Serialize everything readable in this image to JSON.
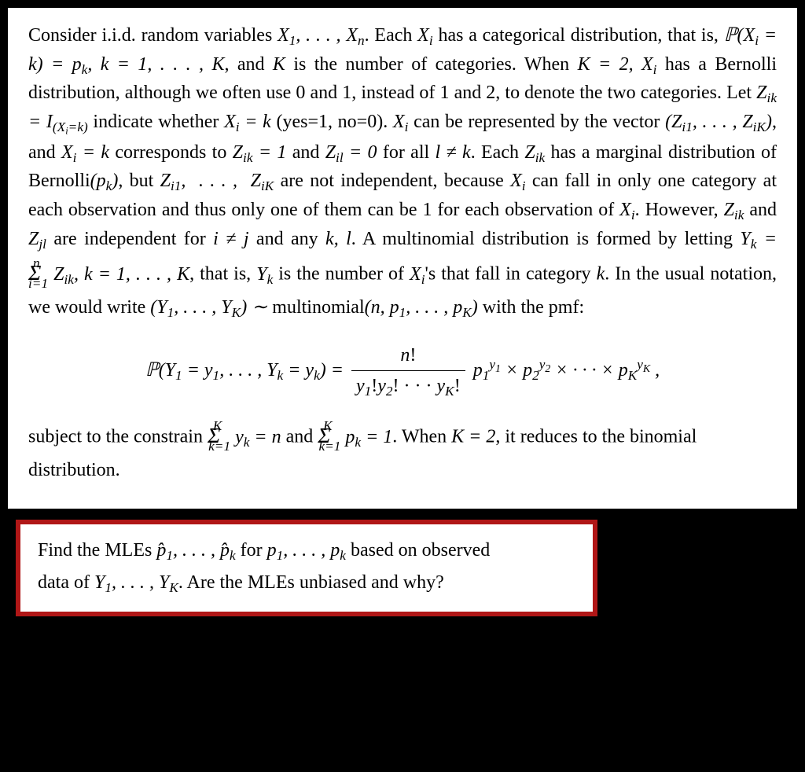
{
  "main": {
    "para1_a": "Consider i.i.d. random variables ",
    "para1_b": ". Each ",
    "para1_c": " has a categorical distribution, that is, ",
    "para1_d": ", and ",
    "para1_e": " is the number of categories. When ",
    "para1_f": " has a Bernolli distribution, although we often use 0 and 1, instead of 1 and 2, to denote the two categories. Let ",
    "para1_g": " indicate whether ",
    "para1_h": " (yes=1, no=0). ",
    "para1_i": " can be represented by the vector ",
    "para1_j": ", and ",
    "para1_k": " corresponds to ",
    "para1_l": " and ",
    "para1_m": " for all ",
    "para1_n": ". Each ",
    "para1_o": " has a marginal distribution of Bernolli",
    "para1_p": ", but ",
    "para1_q": " are not independent, because ",
    "para1_r": " can fall in only one category at each observation and thus only one of them can be 1 for each observation of ",
    "para1_s": ". However, ",
    "para1_t": " and ",
    "para1_u": " are independent for ",
    "para1_v": " and any ",
    "para1_w": ". A multinomial distribution is formed by letting ",
    "para1_x": ", that is, ",
    "para1_y": " is the number of ",
    "para1_z": "'s that fall in category ",
    "para1_aa": ". In the usual notation, we would write ",
    "para1_bb": " multinomial",
    "para1_cc": " with the pmf:",
    "sym_X1Xn": "X₁, . . . , Xₙ",
    "sym_Xi": "Xᵢ",
    "sym_PXik": "ℙ(Xᵢ = k) = pₖ, k = 1, . . . , K",
    "sym_K": "K",
    "sym_K2": "K = 2, Xᵢ",
    "sym_Zik_def": "Zᵢₖ = I_{(Xᵢ=k)}",
    "sym_Xik": "Xᵢ = k",
    "sym_ZiVec": "(Zᵢ₁, . . . , ZᵢK)",
    "sym_Zik1": "Zᵢₖ = 1",
    "sym_Zil0": "Zᵢₗ = 0",
    "sym_lnek": "l ≠ k",
    "sym_Zik": "Zᵢₖ",
    "sym_pk": "(pₖ)",
    "sym_Zi1K": "Zᵢ₁,  . . . ,  ZᵢK",
    "sym_Zjl": "Z_jl",
    "sym_inej": "i ≠ j",
    "sym_kl": "k, l",
    "sym_Yk_def": "Yₖ = Σⁿᵢ₌₁ Zᵢₖ, k = 1, . . . , K",
    "sym_Yk": "Yₖ",
    "sym_k": "k",
    "sym_Y1YK": "(Y₁, . . . , YK) ∼",
    "sym_multi_args": "(n, p₁, . . . , pK)",
    "formula_lhs": "ℙ(Y₁ = y₁, . . . , Yₖ = yₖ) = ",
    "formula_num": "n!",
    "formula_den": "y₁!y₂! · · · yK!",
    "formula_rhs": "p₁^{y₁} × p₂^{y₂} × · · · × pK^{yK} ,",
    "para2_a": "subject to the constrain ",
    "para2_b": " and ",
    "para2_c": ". When ",
    "para2_d": ", it reduces to the binomial distribution.",
    "sym_sumyk": "Σᴷₖ₌₁ yₖ = n",
    "sym_sumpk": "Σᴷₖ₌₁ pₖ = 1",
    "sym_K2b": "K = 2"
  },
  "question": {
    "line1_a": "Find the MLEs ",
    "line1_b": " for ",
    "line1_c": " based on observed",
    "sym_phat": "p̂₁, . . . , p̂ₖ",
    "sym_p": "p₁, . . . , pₖ",
    "line2_a": "data of ",
    "line2_b": ". Are the MLEs unbiased and why?",
    "sym_Y1YK": "Y₁, . . . , YK"
  },
  "style": {
    "bg": "#000000",
    "paper": "#ffffff",
    "border": "#b01717",
    "border_width": 6,
    "fontsize": 24
  }
}
